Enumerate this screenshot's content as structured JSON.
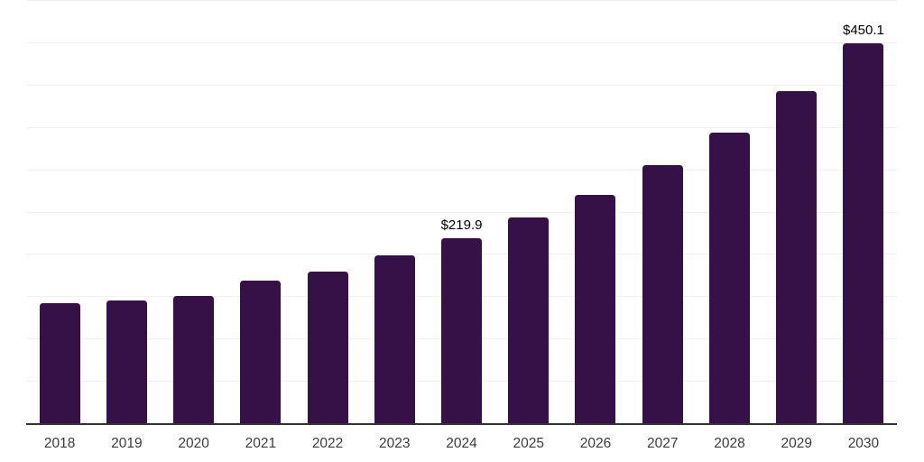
{
  "chart_data": {
    "type": "bar",
    "title": "",
    "xlabel": "",
    "ylabel": "",
    "categories": [
      "2018",
      "2019",
      "2020",
      "2021",
      "2022",
      "2023",
      "2024",
      "2025",
      "2026",
      "2027",
      "2028",
      "2029",
      "2030"
    ],
    "values": [
      143.0,
      146.5,
      151.4,
      169.6,
      180.5,
      199.8,
      219.9,
      244.1,
      271.1,
      305.6,
      344.7,
      393.5,
      450.1
    ],
    "data_labels": {
      "2024": "$219.9",
      "2030": "$450.1"
    },
    "ylim": [
      0,
      500
    ],
    "gridline_step": 50,
    "grid": "horizontal-only",
    "y_axis_tick_labels": "none",
    "legend": "none",
    "colors": {
      "bar": "#351148",
      "gridline": "#f2f2f2",
      "axis_line": "#333333",
      "tick_label": "#3c3c3c",
      "value_label": "#000000",
      "background": "#ffffff"
    }
  }
}
